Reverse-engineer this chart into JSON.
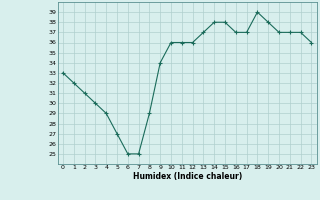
{
  "x": [
    0,
    1,
    2,
    3,
    4,
    5,
    6,
    7,
    8,
    9,
    10,
    11,
    12,
    13,
    14,
    15,
    16,
    17,
    18,
    19,
    20,
    21,
    22,
    23
  ],
  "y": [
    33,
    32,
    31,
    30,
    29,
    27,
    25,
    25,
    29,
    34,
    36,
    36,
    36,
    37,
    38,
    38,
    37,
    37,
    39,
    38,
    37,
    37,
    37,
    36
  ],
  "xlabel": "Humidex (Indice chaleur)",
  "ylim": [
    24,
    40
  ],
  "xlim": [
    -0.5,
    23.5
  ],
  "yticks": [
    25,
    26,
    27,
    28,
    29,
    30,
    31,
    32,
    33,
    34,
    35,
    36,
    37,
    38,
    39
  ],
  "xticks": [
    0,
    1,
    2,
    3,
    4,
    5,
    6,
    7,
    8,
    9,
    10,
    11,
    12,
    13,
    14,
    15,
    16,
    17,
    18,
    19,
    20,
    21,
    22,
    23
  ],
  "line_color": "#1a6b5a",
  "marker": "+",
  "bg_color": "#d8efed",
  "grid_color": "#b0d0ce",
  "label_fontsize": 5.5,
  "tick_fontsize": 4.5
}
